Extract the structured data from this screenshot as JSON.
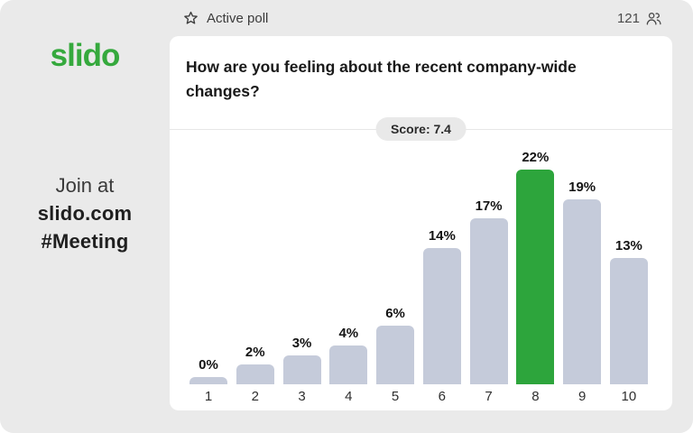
{
  "window": {
    "background_color": "#eaeaea",
    "card_color": "#ffffff"
  },
  "sidebar": {
    "logo": "slido",
    "logo_color": "#35a93d",
    "join": {
      "line1": "Join at",
      "line2": "slido.com",
      "line3": "#Meeting"
    }
  },
  "topbar": {
    "poll_status": "Active poll",
    "star_icon": "star-outline-icon",
    "participants_count": "121",
    "participants_icon": "people-icon"
  },
  "poll": {
    "question": "How are you feeling about the recent company-wide changes?",
    "score_label": "Score: 7.4"
  },
  "chart_data": {
    "type": "bar",
    "title": "",
    "xlabel": "",
    "ylabel": "",
    "categories": [
      "1",
      "2",
      "3",
      "4",
      "5",
      "6",
      "7",
      "8",
      "9",
      "10"
    ],
    "values": [
      0,
      2,
      3,
      4,
      6,
      14,
      17,
      22,
      19,
      13
    ],
    "value_suffix": "%",
    "data_labels": true,
    "grid": false,
    "legend": false,
    "ylim": [
      0,
      24
    ],
    "highlight_category": "8",
    "bar_color": "#c5cbda",
    "highlight_color": "#2da53c"
  }
}
